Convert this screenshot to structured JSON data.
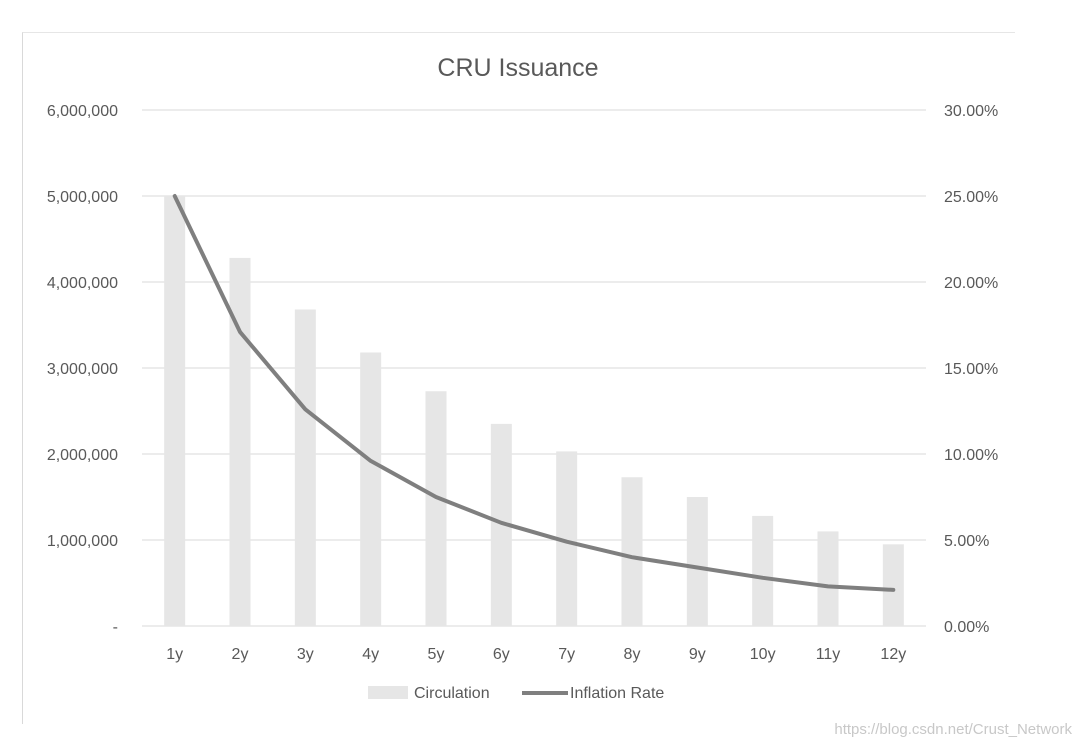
{
  "chart_data": {
    "type": "bar",
    "title": "CRU Issuance",
    "categories": [
      "1y",
      "2y",
      "3y",
      "4y",
      "5y",
      "6y",
      "7y",
      "8y",
      "9y",
      "10y",
      "11y",
      "12y"
    ],
    "series": [
      {
        "name": "Circulation",
        "kind": "bar",
        "axis": "left",
        "values": [
          5000000,
          4280000,
          3680000,
          3180000,
          2730000,
          2350000,
          2030000,
          1730000,
          1500000,
          1280000,
          1100000,
          950000
        ]
      },
      {
        "name": "Inflation Rate",
        "kind": "line",
        "axis": "right",
        "values": [
          0.25,
          0.171,
          0.126,
          0.096,
          0.075,
          0.06,
          0.049,
          0.04,
          0.034,
          0.028,
          0.023,
          0.021
        ]
      }
    ],
    "y_left": {
      "ylim": [
        0,
        6000000
      ],
      "ticks": [
        0,
        1000000,
        2000000,
        3000000,
        4000000,
        5000000,
        6000000
      ],
      "tick_labels": [
        "-",
        "1,000,000",
        "2,000,000",
        "3,000,000",
        "4,000,000",
        "5,000,000",
        "6,000,000"
      ]
    },
    "y_right": {
      "ylim": [
        0,
        0.3
      ],
      "ticks": [
        0,
        0.05,
        0.1,
        0.15,
        0.2,
        0.25,
        0.3
      ],
      "tick_labels": [
        "0.00%",
        "5.00%",
        "10.00%",
        "15.00%",
        "20.00%",
        "25.00%",
        "30.00%"
      ]
    },
    "grid": true,
    "legend_position": "bottom",
    "colors": {
      "bar": "#e6e6e6",
      "line": "#7f7f7f",
      "grid": "#d9d9d9",
      "text": "#595959"
    }
  },
  "watermark": "https://blog.csdn.net/Crust_Network"
}
